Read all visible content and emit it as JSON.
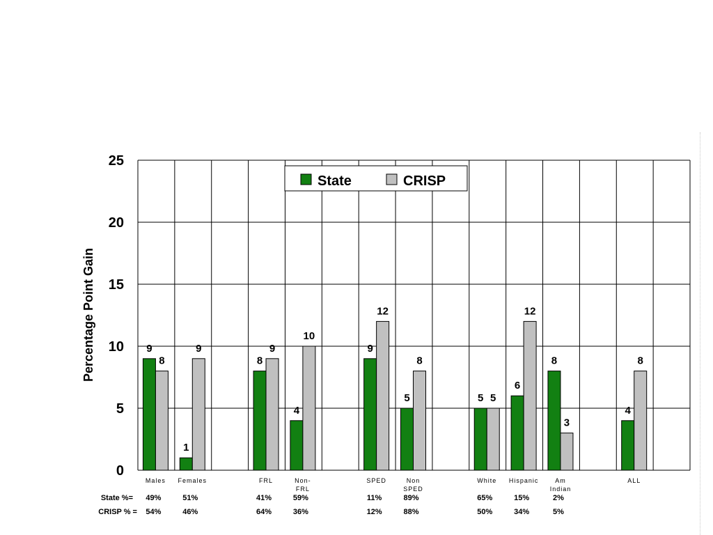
{
  "colors": {
    "state": "#128012",
    "crisp": "#c0c0c0",
    "grid": "#000000",
    "bar_stroke": "#000000"
  },
  "chart_data": {
    "type": "bar",
    "title": "",
    "xlabel": "",
    "ylabel": "Percentage Point Gain",
    "ylim": [
      0,
      25
    ],
    "yticks": [
      0,
      5,
      10,
      15,
      20,
      25
    ],
    "grid": true,
    "legend_position": "top-center",
    "categories": [
      {
        "label": "Males",
        "label2": ""
      },
      {
        "label": "Females",
        "label2": ""
      },
      {
        "label": "",
        "label2": ""
      },
      {
        "label": "FRL",
        "label2": ""
      },
      {
        "label": "Non-",
        "label2": "FRL"
      },
      {
        "label": "",
        "label2": ""
      },
      {
        "label": "SPED",
        "label2": ""
      },
      {
        "label": "Non",
        "label2": "SPED"
      },
      {
        "label": "",
        "label2": ""
      },
      {
        "label": "White",
        "label2": ""
      },
      {
        "label": "Hispanic",
        "label2": ""
      },
      {
        "label": "Am",
        "label2": "Indian"
      },
      {
        "label": "",
        "label2": ""
      },
      {
        "label": "ALL",
        "label2": ""
      },
      {
        "label": "",
        "label2": ""
      }
    ],
    "series": [
      {
        "name": "State",
        "color": "#128012",
        "values": [
          9,
          1,
          null,
          8,
          4,
          null,
          9,
          5,
          null,
          5,
          6,
          8,
          null,
          4,
          null
        ]
      },
      {
        "name": "CRISP",
        "color": "#c0c0c0",
        "values": [
          8,
          9,
          null,
          9,
          10,
          null,
          12,
          8,
          null,
          5,
          12,
          3,
          null,
          8,
          null
        ]
      }
    ],
    "table_rows": [
      {
        "label": "State %=",
        "values": [
          "49%",
          "51%",
          "",
          "41%",
          "59%",
          "",
          "11%",
          "89%",
          "",
          "65%",
          "15%",
          "2%",
          "",
          "",
          ""
        ]
      },
      {
        "label": "CRISP  % =",
        "values": [
          "54%",
          "46%",
          "",
          "64%",
          "36%",
          "",
          "12%",
          "88%",
          "",
          "50%",
          "34%",
          "5%",
          "",
          "",
          ""
        ]
      }
    ]
  }
}
